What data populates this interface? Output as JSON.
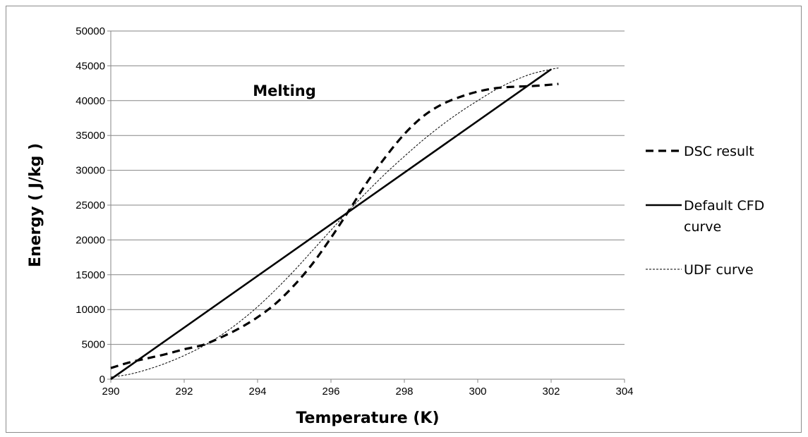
{
  "chart_data": {
    "type": "line",
    "title": "",
    "xlabel": "Temperature (K)",
    "ylabel": "Energy ( J/kg )",
    "xlim": [
      290,
      304
    ],
    "ylim": [
      0,
      50000
    ],
    "x_ticks": [
      "290",
      "292",
      "294",
      "296",
      "298",
      "300",
      "302",
      "304"
    ],
    "y_ticks": [
      "0",
      "5000",
      "10000",
      "15000",
      "20000",
      "25000",
      "30000",
      "35000",
      "40000",
      "45000",
      "50000"
    ],
    "grid": "horizontal",
    "legend_position": "right",
    "annotations": [
      {
        "text": "Melting",
        "x": 294.1,
        "y": 41500
      }
    ],
    "series": [
      {
        "name": "DSC result",
        "style": "dashed",
        "color": "#000000",
        "x": [
          290,
          290.5,
          291,
          291.5,
          292,
          292.5,
          293,
          293.5,
          294,
          294.5,
          295,
          295.5,
          296,
          296.5,
          297,
          297.5,
          298,
          298.5,
          299,
          299.5,
          300,
          300.5,
          301,
          301.5,
          302,
          302.2
        ],
        "y": [
          1600,
          2400,
          3000,
          3600,
          4300,
          4900,
          6000,
          7300,
          8900,
          10900,
          13500,
          16600,
          20300,
          24300,
          28400,
          32000,
          35200,
          37700,
          39400,
          40500,
          41300,
          41800,
          42000,
          42100,
          42300,
          42400
        ]
      },
      {
        "name": "Default CFD curve",
        "style": "solid",
        "color": "#000000",
        "x": [
          290,
          302
        ],
        "y": [
          0,
          44500
        ]
      },
      {
        "name": "UDF curve",
        "style": "dotted",
        "color": "#000000",
        "x": [
          290,
          290.5,
          291,
          291.5,
          292,
          292.5,
          293,
          293.5,
          294,
          294.5,
          295,
          295.5,
          296,
          296.5,
          297,
          297.5,
          298,
          298.5,
          299,
          299.5,
          300,
          300.5,
          301,
          301.5,
          302,
          302.2
        ],
        "y": [
          300,
          700,
          1400,
          2300,
          3400,
          4700,
          6300,
          8200,
          10400,
          12900,
          15600,
          18500,
          21400,
          24300,
          27000,
          29600,
          32000,
          34300,
          36400,
          38300,
          40000,
          41600,
          42900,
          43900,
          44500,
          44700
        ]
      }
    ]
  }
}
